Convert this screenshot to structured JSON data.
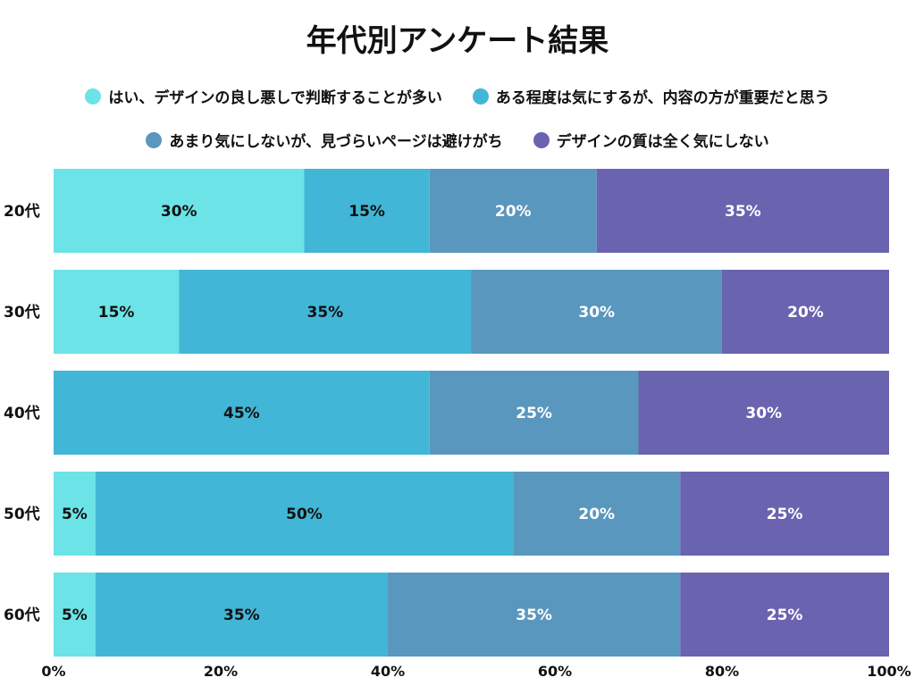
{
  "chart_data": {
    "type": "bar",
    "orientation": "horizontal",
    "stacked": true,
    "title": "年代別アンケート結果",
    "categories": [
      "20代",
      "30代",
      "40代",
      "50代",
      "60代"
    ],
    "series": [
      {
        "name": "はい、デザインの良し悪しで判断することが多い",
        "color": "#6ce3e6",
        "label_color": "#111111",
        "values": [
          30,
          15,
          0,
          5,
          5
        ]
      },
      {
        "name": "ある程度は気にするが、内容の方が重要だと思う",
        "color": "#42b6d6",
        "label_color": "#111111",
        "values": [
          15,
          35,
          45,
          50,
          35
        ]
      },
      {
        "name": "あまり気にしないが、見づらいページは避けがち",
        "color": "#5a97bf",
        "label_color": "#ffffff",
        "values": [
          20,
          30,
          25,
          20,
          35
        ]
      },
      {
        "name": "デザインの質は全く気にしない",
        "color": "#6a63b0",
        "label_color": "#ffffff",
        "values": [
          35,
          20,
          30,
          25,
          25
        ]
      }
    ],
    "xlim": [
      0,
      100
    ],
    "xticks": [
      "0%",
      "20%",
      "40%",
      "60%",
      "80%",
      "100%"
    ],
    "value_suffix": "%",
    "legend": "top",
    "grid": false
  }
}
